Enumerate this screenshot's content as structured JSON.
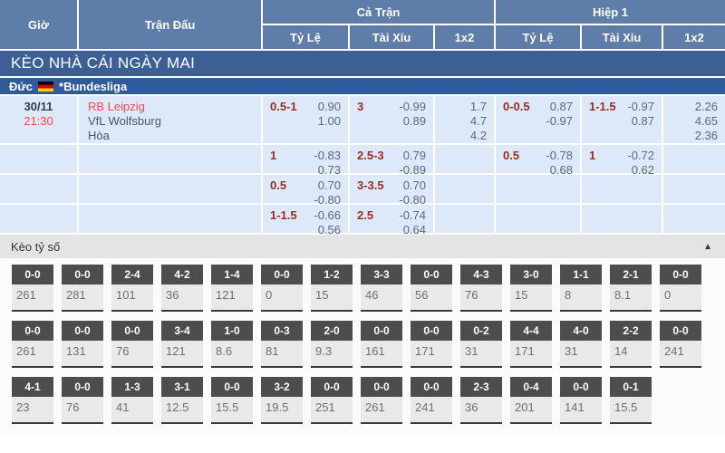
{
  "header": {
    "time": "Giờ",
    "match": "Trận Đấu",
    "full_time": "Cả Trận",
    "first_half": "Hiệp 1",
    "sub": {
      "handicap": "Tỷ Lệ",
      "over_under": "Tài Xỉu",
      "one_x_two": "1x2"
    }
  },
  "banner": {
    "title": "KÈO NHÀ CÁI NGÀY MAI"
  },
  "league": {
    "country": "Đức",
    "flag_icon": "germany-flag",
    "name": "*Bundesliga"
  },
  "match": {
    "date": "30/11",
    "time": "21:30",
    "teams": [
      "RB Leipzig",
      "VfL Wolfsburg",
      "Hòa"
    ]
  },
  "odds_rows": [
    {
      "ft_handicap": {
        "line": "0.5-1",
        "odds": [
          "0.90",
          "1.00"
        ]
      },
      "ft_over_under": {
        "line": "3",
        "odds": [
          "-0.99",
          "0.89"
        ]
      },
      "ft_1x2": [
        "1.7",
        "4.7",
        "4.2"
      ],
      "h1_handicap": {
        "line": "0-0.5",
        "odds": [
          "0.87",
          "-0.97"
        ]
      },
      "h1_over_under": {
        "line": "1-1.5",
        "odds": [
          "-0.97",
          "0.87"
        ]
      },
      "h1_1x2": [
        "2.26",
        "4.65",
        "2.36"
      ]
    },
    {
      "ft_handicap": {
        "line": "1",
        "odds": [
          "-0.83",
          "0.73"
        ]
      },
      "ft_over_under": {
        "line": "2.5-3",
        "odds": [
          "0.79",
          "-0.89"
        ]
      },
      "ft_1x2": [],
      "h1_handicap": {
        "line": "0.5",
        "odds": [
          "-0.78",
          "0.68"
        ]
      },
      "h1_over_under": {
        "line": "1",
        "odds": [
          "-0.72",
          "0.62"
        ]
      },
      "h1_1x2": []
    },
    {
      "ft_handicap": {
        "line": "0.5",
        "odds": [
          "0.70",
          "-0.80"
        ]
      },
      "ft_over_under": {
        "line": "3-3.5",
        "odds": [
          "0.70",
          "-0.80"
        ]
      },
      "ft_1x2": [],
      "h1_handicap": {
        "line": "",
        "odds": []
      },
      "h1_over_under": {
        "line": "",
        "odds": []
      },
      "h1_1x2": []
    },
    {
      "ft_handicap": {
        "line": "1-1.5",
        "odds": [
          "-0.66",
          "0.56"
        ]
      },
      "ft_over_under": {
        "line": "2.5",
        "odds": [
          "-0.74",
          "0.64"
        ]
      },
      "ft_1x2": [],
      "h1_handicap": {
        "line": "",
        "odds": []
      },
      "h1_over_under": {
        "line": "",
        "odds": []
      },
      "h1_1x2": []
    }
  ],
  "score_section": {
    "title": "Kèo tỷ số",
    "collapse_icon": "▲",
    "rows": [
      [
        {
          "score": "0-0",
          "odds": "261"
        },
        {
          "score": "0-0",
          "odds": "281"
        },
        {
          "score": "2-4",
          "odds": "101"
        },
        {
          "score": "4-2",
          "odds": "36"
        },
        {
          "score": "1-4",
          "odds": "121"
        },
        {
          "score": "0-0",
          "odds": "0"
        },
        {
          "score": "1-2",
          "odds": "15"
        },
        {
          "score": "3-3",
          "odds": "46"
        },
        {
          "score": "0-0",
          "odds": "56"
        },
        {
          "score": "4-3",
          "odds": "76"
        },
        {
          "score": "3-0",
          "odds": "15"
        },
        {
          "score": "1-1",
          "odds": "8"
        },
        {
          "score": "2-1",
          "odds": "8.1"
        },
        {
          "score": "0-0",
          "odds": "0"
        }
      ],
      [
        {
          "score": "0-0",
          "odds": "261"
        },
        {
          "score": "0-0",
          "odds": "131"
        },
        {
          "score": "0-0",
          "odds": "76"
        },
        {
          "score": "3-4",
          "odds": "121"
        },
        {
          "score": "1-0",
          "odds": "8.6"
        },
        {
          "score": "0-3",
          "odds": "81"
        },
        {
          "score": "2-0",
          "odds": "9.3"
        },
        {
          "score": "0-0",
          "odds": "161"
        },
        {
          "score": "0-0",
          "odds": "171"
        },
        {
          "score": "0-2",
          "odds": "31"
        },
        {
          "score": "4-4",
          "odds": "171"
        },
        {
          "score": "4-0",
          "odds": "31"
        },
        {
          "score": "2-2",
          "odds": "14"
        },
        {
          "score": "0-0",
          "odds": "241"
        }
      ],
      [
        {
          "score": "4-1",
          "odds": "23"
        },
        {
          "score": "0-0",
          "odds": "76"
        },
        {
          "score": "1-3",
          "odds": "41"
        },
        {
          "score": "3-1",
          "odds": "12.5"
        },
        {
          "score": "0-0",
          "odds": "15.5"
        },
        {
          "score": "3-2",
          "odds": "19.5"
        },
        {
          "score": "0-0",
          "odds": "251"
        },
        {
          "score": "0-0",
          "odds": "261"
        },
        {
          "score": "0-0",
          "odds": "241"
        },
        {
          "score": "2-3",
          "odds": "36"
        },
        {
          "score": "0-4",
          "odds": "201"
        },
        {
          "score": "0-0",
          "odds": "141"
        },
        {
          "score": "0-1",
          "odds": "15.5"
        }
      ]
    ]
  },
  "colors": {
    "header_blue": "#5e7da9",
    "banner_blue": "#3c5f95",
    "league_blue": "#2f5b9d",
    "cell_blue": "#dde9f8",
    "handicap_red": "#9c2d23",
    "team_red": "#ee4b4f",
    "odds_gray": "#5d6878",
    "score_box_dark": "#4d4d4d",
    "score_box_light": "#e9e9e9"
  }
}
